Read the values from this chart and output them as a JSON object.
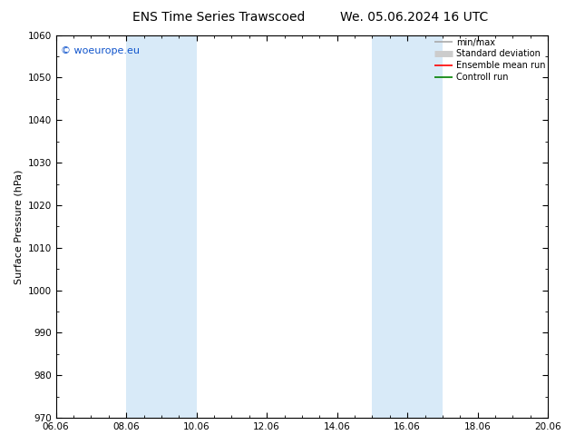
{
  "title_left": "ENS Time Series Trawscoed",
  "title_right": "We. 05.06.2024 16 UTC",
  "ylabel": "Surface Pressure (hPa)",
  "ylim": [
    970,
    1060
  ],
  "yticks": [
    970,
    980,
    990,
    1000,
    1010,
    1020,
    1030,
    1040,
    1050,
    1060
  ],
  "xlim": [
    0,
    14
  ],
  "xtick_labels": [
    "06.06",
    "08.06",
    "10.06",
    "12.06",
    "14.06",
    "16.06",
    "18.06",
    "20.06"
  ],
  "xtick_positions": [
    0,
    2,
    4,
    6,
    8,
    10,
    12,
    14
  ],
  "shaded_bands": [
    {
      "xmin": 2,
      "xmax": 4,
      "color": "#d8eaf8",
      "alpha": 1.0
    },
    {
      "xmin": 9,
      "xmax": 11,
      "color": "#d8eaf8",
      "alpha": 1.0
    }
  ],
  "legend_entries": [
    {
      "label": "min/max",
      "color": "#aaaaaa",
      "lw": 1.2
    },
    {
      "label": "Standard deviation",
      "color": "#cccccc",
      "lw": 5
    },
    {
      "label": "Ensemble mean run",
      "color": "red",
      "lw": 1.2
    },
    {
      "label": "Controll run",
      "color": "green",
      "lw": 1.2
    }
  ],
  "watermark": "© woeurope.eu",
  "watermark_color": "#1155cc",
  "background_color": "#ffffff",
  "plot_bg_color": "#ffffff"
}
